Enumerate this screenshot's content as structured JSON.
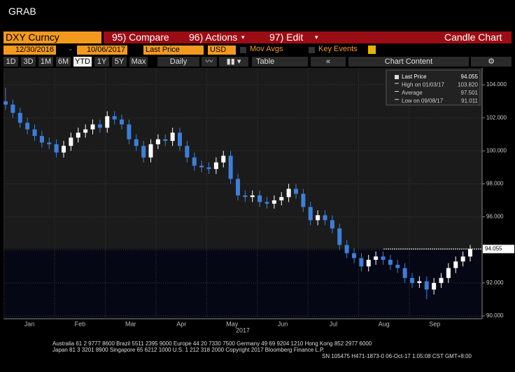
{
  "window_title": "GRAB",
  "toolbar": {
    "security": "DXY Curncy",
    "compare": "95) Compare",
    "actions": "96) Actions",
    "edit": "97) Edit",
    "chart_kind": "Candle Chart",
    "start_date": "12/30/2016",
    "end_date": "10/06/2017",
    "field": "Last Price",
    "currency": "USD",
    "mov_avgs": "Mov Avgs",
    "key_events": "Key Events",
    "periods": [
      "1D",
      "3D",
      "1M",
      "6M",
      "YTD",
      "1Y",
      "5Y",
      "Max"
    ],
    "frequency": "Daily",
    "table": "Table",
    "chart_content": "Chart Content"
  },
  "chart_data": {
    "type": "candlestick",
    "year_label": "2017",
    "months": [
      "Jan",
      "Feb",
      "Mar",
      "Apr",
      "May",
      "Jun",
      "Jul",
      "Aug",
      "Sep"
    ],
    "up_color": "#ffffff",
    "down_color": "#3d7fd9",
    "open": [
      103.0,
      102.8,
      102.3,
      101.7,
      101.3,
      100.9,
      100.5,
      100.4,
      99.9,
      100.3,
      100.8,
      101.1,
      101.3,
      101.6,
      101.4,
      102.1,
      101.9,
      101.6,
      100.7,
      100.3,
      99.6,
      100.4,
      100.7,
      100.6,
      101.1,
      100.3,
      99.6,
      99.1,
      99.0,
      98.9,
      99.3,
      99.7,
      98.3,
      97.3,
      97.2,
      97.3,
      96.9,
      96.8,
      97.0,
      97.2,
      97.7,
      97.4,
      96.6,
      95.8,
      96.1,
      95.8,
      95.3,
      94.3,
      93.8,
      93.5,
      93.0,
      93.4,
      93.6,
      93.4,
      93.1,
      92.9,
      92.3,
      92.0,
      92.1,
      91.6,
      92.0,
      92.3,
      92.9,
      93.3,
      93.6
    ],
    "high": [
      103.82,
      103.1,
      102.6,
      102.0,
      101.6,
      101.2,
      100.8,
      100.7,
      100.6,
      101.1,
      101.4,
      101.6,
      101.9,
      101.9,
      102.4,
      102.4,
      102.2,
      101.9,
      101.0,
      100.6,
      100.7,
      101.0,
      101.0,
      101.4,
      101.4,
      100.6,
      99.9,
      99.4,
      99.3,
      99.6,
      100.0,
      100.0,
      98.6,
      97.6,
      97.6,
      97.6,
      97.2,
      97.3,
      97.5,
      98.0,
      98.0,
      97.7,
      96.9,
      96.4,
      96.4,
      96.1,
      95.6,
      94.6,
      94.1,
      93.8,
      93.7,
      93.9,
      93.9,
      93.7,
      93.4,
      93.2,
      92.6,
      92.4,
      92.4,
      92.3,
      92.6,
      93.2,
      93.6,
      93.9,
      94.3
    ],
    "low": [
      102.5,
      102.0,
      101.4,
      101.0,
      100.6,
      100.2,
      100.1,
      99.6,
      99.6,
      100.0,
      100.5,
      100.8,
      101.0,
      101.1,
      101.1,
      101.6,
      101.3,
      100.4,
      100.0,
      99.3,
      99.3,
      100.1,
      100.3,
      100.3,
      100.0,
      99.3,
      98.8,
      98.7,
      98.6,
      98.6,
      99.0,
      98.0,
      97.0,
      96.9,
      96.9,
      96.6,
      96.5,
      96.5,
      96.7,
      96.9,
      97.1,
      96.3,
      95.5,
      95.5,
      95.5,
      95.0,
      94.0,
      93.5,
      93.2,
      92.7,
      92.7,
      93.1,
      93.1,
      92.8,
      92.6,
      92.0,
      91.7,
      91.7,
      91.011,
      91.3,
      91.7,
      92.0,
      92.6,
      93.0,
      93.3
    ],
    "close": [
      102.8,
      102.3,
      101.7,
      101.3,
      100.9,
      100.5,
      100.4,
      99.9,
      100.3,
      100.8,
      101.1,
      101.3,
      101.6,
      101.4,
      102.1,
      101.9,
      101.6,
      100.7,
      100.3,
      99.6,
      100.4,
      100.7,
      100.6,
      101.1,
      100.3,
      99.6,
      99.1,
      99.0,
      98.9,
      99.3,
      99.7,
      98.3,
      97.3,
      97.2,
      97.3,
      96.9,
      96.8,
      97.0,
      97.2,
      97.7,
      97.4,
      96.6,
      95.8,
      96.1,
      95.8,
      95.3,
      94.3,
      93.8,
      93.5,
      93.0,
      93.4,
      93.6,
      93.4,
      93.1,
      92.9,
      92.3,
      92.0,
      92.1,
      91.6,
      92.0,
      92.3,
      92.9,
      93.3,
      93.6,
      94.055
    ],
    "last_price": {
      "value": 94.055,
      "label": "94.055"
    },
    "ylim": [
      89.83,
      105.02
    ],
    "yticks": [
      {
        "value": 90,
        "label": "90.000"
      },
      {
        "value": 92,
        "label": "92.000"
      },
      {
        "value": 94,
        "label": "94.000"
      },
      {
        "value": 96,
        "label": "96.000"
      },
      {
        "value": 98,
        "label": "98.000"
      },
      {
        "value": 100,
        "label": "100.000"
      },
      {
        "value": 102,
        "label": "102.000"
      },
      {
        "value": 104,
        "label": "104.000"
      }
    ],
    "grid": true,
    "stats": [
      {
        "name": "Last Price",
        "value": 94.055,
        "label": "94.055"
      },
      {
        "name": "High on 01/03/17",
        "value": 103.82,
        "label": "103.820"
      },
      {
        "name": "Average",
        "value": 97.501,
        "label": "97.501"
      },
      {
        "name": "Low on 09/08/17",
        "value": 91.011,
        "label": "91.011"
      }
    ]
  },
  "footer": [
    "Australia 61 2 9777 8600 Brazil 5511 2395 9000 Europe 44 20 7330 7500 Germany 49 69 9204 1210 Hong Kong 852 2977 6000",
    "Japan 81 3 3201 8900       Singapore 65 6212 1000       U.S. 1 212 318 2000       Copyright 2017 Bloomberg Finance L.P.",
    "SN 105475 H471-1873-0 06-Oct-17 1:05:08 CST GMT+8:00"
  ]
}
